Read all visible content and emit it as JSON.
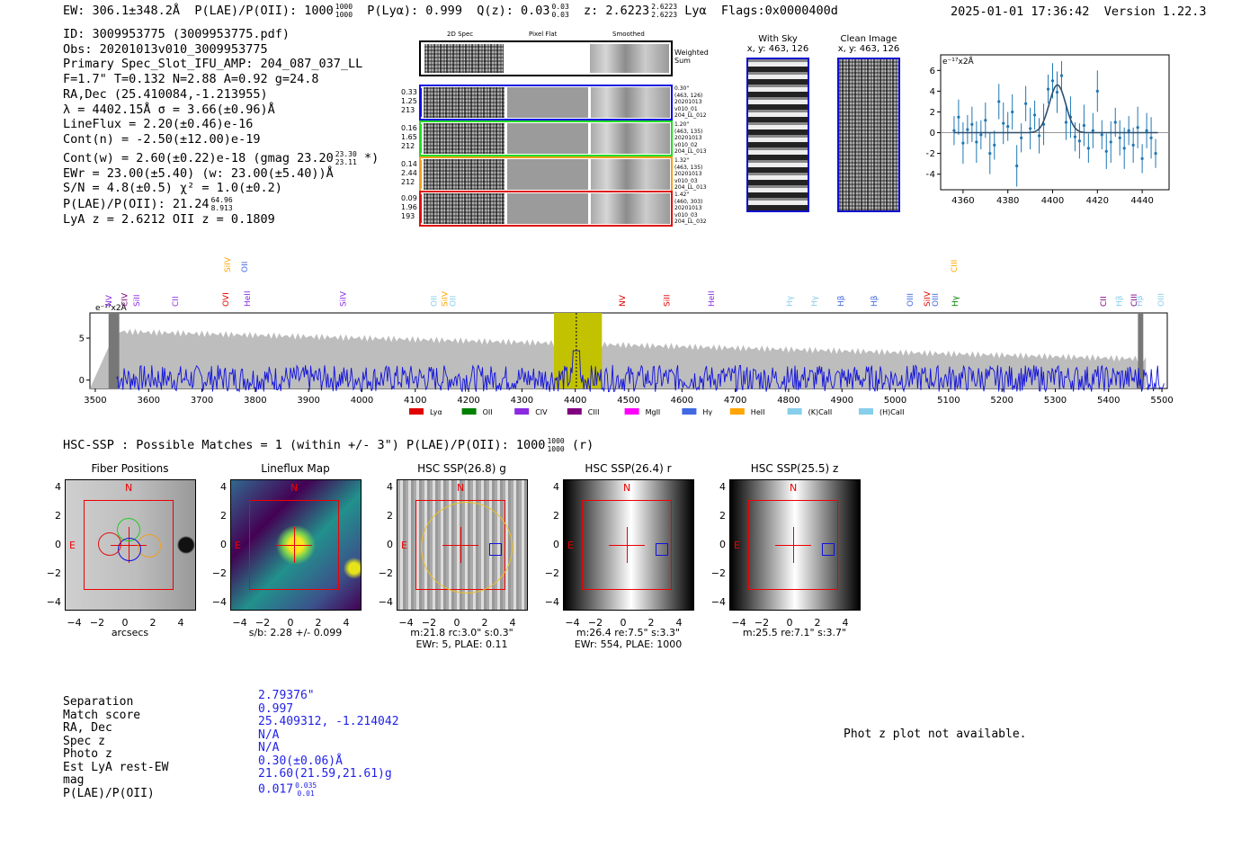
{
  "header": {
    "ew": "EW: 306.1±348.2Å",
    "plae_label": "P(LAE)/P(OII): 1000",
    "plae_hi": "1000",
    "plae_lo": "1000",
    "plya": "P(Lyα): 0.999",
    "qz_label": "Q(z): 0.03",
    "qz_hi": "0.03",
    "qz_lo": "0.03",
    "z_label": "z: 2.6223",
    "z_hi": "2.6223",
    "z_lo": "2.6223",
    "z_line": "Lyα",
    "flags": "Flags:0x0000400d",
    "timestamp": "2025-01-01 17:36:42",
    "version": "Version 1.22.3"
  },
  "info": {
    "id": "ID: 3009953775 (3009953775.pdf)",
    "obs": "Obs: 20201013v010_3009953775",
    "primary": "Primary Spec_Slot_IFU_AMP: 204_087_037_LL",
    "params": "F=1.7\"  T=0.132  N=2.88  A=0.92  g=24.8",
    "radec": "RA,Dec (25.410084,-1.213955)",
    "lambda": "λ = 4402.15Å  σ = 3.66(±0.96)Å",
    "lineflux": "LineFlux = 2.20(±0.46)e-16",
    "contn": "Cont(n) = -2.50(±12.00)e-19",
    "contw": "Cont(w) = 2.60(±0.22)e-18 (gmag 23.20",
    "contw_hi": "23.30",
    "contw_lo": "23.11",
    "contw_end": "*)",
    "ewr": "EWr = 23.00(±5.40) (w: 23.00(±5.40))Å",
    "sn": "S/N = 4.8(±0.5)  χ² = 1.0(±0.2)",
    "plae": "P(LAE)/P(OII): 21.24",
    "plae_hi": "64.96",
    "plae_lo": "8.913",
    "lyaz": "LyA z = 2.6212  OII z = 0.1809"
  },
  "cutouts": {
    "col_titles": [
      "2D Spec",
      "Pixel Flat",
      "Smoothed"
    ],
    "weighted_sum": "Weighted\nSum",
    "rows": [
      {
        "color": "#1010e0",
        "left": [
          "0.33",
          "1.25",
          "213"
        ],
        "right": [
          "0.30\"",
          "(463, 126)",
          "20201013",
          "v010_01",
          "204_LL_012"
        ]
      },
      {
        "color": "#22dd22",
        "left": [
          "0.16",
          "1.65",
          "212"
        ],
        "right": [
          "1.20\"",
          "(463, 135)",
          "20201013",
          "v010_02",
          "204_LL_013"
        ]
      },
      {
        "color": "#f0a020",
        "left": [
          "0.14",
          "2.44",
          "212"
        ],
        "right": [
          "1.32\"",
          "(463, 135)",
          "20201013",
          "v010_03",
          "204_LL_013"
        ]
      },
      {
        "color": "#e01010",
        "left": [
          "0.09",
          "1.96",
          "193"
        ],
        "right": [
          "1.42\"",
          "(460, 303)",
          "20201013",
          "v010_03",
          "204_LL_032"
        ]
      }
    ],
    "with_sky_title": "With Sky",
    "with_sky_xy": "x, y: 463, 126",
    "clean_title": "Clean Image",
    "clean_xy": "x, y: 463, 126"
  },
  "zoom_plot": {
    "unit": "e⁻¹⁷x2Å",
    "x_ticks": [
      "4360",
      "4380",
      "4400",
      "4420",
      "4440"
    ],
    "y_ticks": [
      "6",
      "4",
      "2",
      "0",
      "−2",
      "−4"
    ]
  },
  "chart_data": [
    {
      "type": "scatter",
      "title": "",
      "xlabel": "",
      "ylabel": "e⁻¹⁷x2Å",
      "xlim": [
        4350,
        4452
      ],
      "ylim": [
        -5.5,
        7.5
      ],
      "series": [
        {
          "name": "",
          "x": [
            4356,
            4358,
            4360,
            4362,
            4364,
            4366,
            4368,
            4370,
            4372,
            4374,
            4376,
            4378,
            4380,
            4382,
            4384,
            4386,
            4388,
            4390,
            4392,
            4394,
            4396,
            4398,
            4400,
            4402,
            4404,
            4406,
            4408,
            4410,
            4412,
            4414,
            4416,
            4418,
            4420,
            4422,
            4424,
            4426,
            4428,
            4430,
            4432,
            4434,
            4436,
            4438,
            4440,
            4442,
            4444,
            4446
          ],
          "y": [
            0.2,
            1.5,
            -1.0,
            0.3,
            0.8,
            -0.9,
            -0.2,
            1.2,
            -2.0,
            -1.2,
            3.0,
            0.9,
            0.6,
            2.0,
            -3.2,
            -0.5,
            2.8,
            0.4,
            1.7,
            -0.3,
            0.8,
            4.2,
            5.0,
            3.9,
            5.5,
            1.0,
            1.5,
            -0.4,
            -0.8,
            0.7,
            -1.5,
            0.2,
            4.0,
            -0.2,
            -1.8,
            -0.9,
            1.0,
            -0.5,
            -1.5,
            0.2,
            -1.2,
            0.5,
            -2.5,
            0.2,
            -0.5,
            -2.0
          ]
        }
      ]
    },
    {
      "type": "line",
      "title": "",
      "xlabel": "",
      "ylabel": "e⁻¹⁷x2Å",
      "xlim": [
        3490,
        5510
      ],
      "ylim": [
        -1,
        8
      ],
      "x_ticks": [
        "3500",
        "3600",
        "3700",
        "3800",
        "3900",
        "4000",
        "4100",
        "4200",
        "4300",
        "4400",
        "4500",
        "4600",
        "4700",
        "4800",
        "4900",
        "5000",
        "5100",
        "5200",
        "5300",
        "5400",
        "5500"
      ],
      "y_ticks": [
        "5",
        "0"
      ],
      "highlight": [
        4360,
        4450
      ],
      "legend": [
        {
          "name": "Lyα",
          "color": "#e00000"
        },
        {
          "name": "OII",
          "color": "#008000"
        },
        {
          "name": "CIV",
          "color": "#8a2be2"
        },
        {
          "name": "CIII",
          "color": "#800080"
        },
        {
          "name": "MgII",
          "color": "#ff00ff"
        },
        {
          "name": "Hγ",
          "color": "#4169e1"
        },
        {
          "name": "HeII",
          "color": "#ffa500"
        },
        {
          "name": "(K)CaII",
          "color": "#87ceeb"
        },
        {
          "name": "(H)CaII",
          "color": "#87ceeb"
        }
      ],
      "line_labels": [
        {
          "name": "NV",
          "x": 3525,
          "color": "#8a2be2"
        },
        {
          "name": "CIV",
          "x": 3555,
          "color": "#800080"
        },
        {
          "name": "SiII",
          "x": 3578,
          "color": "#8a2be2"
        },
        {
          "name": "CII",
          "x": 3650,
          "color": "#8a2be2"
        },
        {
          "name": "SiIV",
          "x": 3748,
          "color": "#ffa500",
          "high": true
        },
        {
          "name": "OII",
          "x": 3780,
          "color": "#4169e1",
          "high": true
        },
        {
          "name": "OVI",
          "x": 3745,
          "color": "#e00000"
        },
        {
          "name": "HeII",
          "x": 3785,
          "color": "#8a2be2"
        },
        {
          "name": "SiIV",
          "x": 3965,
          "color": "#8a2be2"
        },
        {
          "name": "OII",
          "x": 4135,
          "color": "#87ceeb"
        },
        {
          "name": "SiIV",
          "x": 4155,
          "color": "#ffa500"
        },
        {
          "name": "OII",
          "x": 4170,
          "color": "#87ceeb"
        },
        {
          "name": "NV",
          "x": 4488,
          "color": "#e00000"
        },
        {
          "name": "SiII",
          "x": 4572,
          "color": "#e00000"
        },
        {
          "name": "HeII",
          "x": 4655,
          "color": "#8a2be2"
        },
        {
          "name": "Hγ",
          "x": 4802,
          "color": "#87ceeb"
        },
        {
          "name": "Hγ",
          "x": 4848,
          "color": "#87ceeb"
        },
        {
          "name": "Hβ",
          "x": 4898,
          "color": "#4169e1"
        },
        {
          "name": "Hβ",
          "x": 4960,
          "color": "#4169e1"
        },
        {
          "name": "OIII",
          "x": 5028,
          "color": "#4169e1"
        },
        {
          "name": "SiIV",
          "x": 5060,
          "color": "#e00000"
        },
        {
          "name": "OIII",
          "x": 5075,
          "color": "#4169e1"
        },
        {
          "name": "CIII",
          "x": 5110,
          "color": "#ffa500",
          "high": true
        },
        {
          "name": "Hγ",
          "x": 5112,
          "color": "#008000"
        },
        {
          "name": "CII",
          "x": 5390,
          "color": "#800080"
        },
        {
          "name": "Hβ",
          "x": 5420,
          "color": "#87ceeb"
        },
        {
          "name": "CIII",
          "x": 5448,
          "color": "#800080"
        },
        {
          "name": "Hβ",
          "x": 5458,
          "color": "#87ceeb"
        },
        {
          "name": "OIII",
          "x": 5498,
          "color": "#87ceeb"
        }
      ]
    }
  ],
  "hsc": {
    "summary": "HSC-SSP : Possible Matches = 1 (within +/- 3\")  P(LAE)/P(OII): 1000",
    "summary_hi": "1000",
    "summary_lo": "1000",
    "summary_end": "(r)",
    "panels": [
      {
        "title": "Fiber Positions",
        "cap1": "arcsecs",
        "cap2": ""
      },
      {
        "title": "Lineflux Map",
        "cap1": "s/b: 2.28 +/- 0.099",
        "cap2": ""
      },
      {
        "title": "HSC SSP(26.8) g",
        "cap1": "m:21.8 rc:3.0\"  s:0.3\"",
        "cap2": "EWr: 5, PLAE: 0.11"
      },
      {
        "title": "HSC SSP(26.4) r",
        "cap1": "m:26.4  re:7.5\"  s:3.3\"",
        "cap2": "EWr: 554, PLAE: 1000"
      },
      {
        "title": "HSC SSP(25.5) z",
        "cap1": "m:25.5  re:7.1\"  s:3.7\"",
        "cap2": ""
      }
    ],
    "axis_ticks": [
      "4",
      "2",
      "0",
      "−2",
      "−4"
    ],
    "x_ticks": [
      "−4",
      "−2",
      "0",
      "2",
      "4"
    ],
    "north": "N",
    "east": "E"
  },
  "match_table": {
    "keys": [
      "Separation",
      "Match score",
      "RA, Dec",
      "Spec z",
      "Photo z",
      "Est LyA rest-EW",
      "mag",
      "P(LAE)/P(OII)"
    ],
    "values": [
      "2.79376\"",
      "0.997",
      "25.409312, -1.214042",
      "N/A",
      "N/A",
      "0.30(±0.06)Å",
      "21.60(21.59,21.61)g",
      "0.017"
    ],
    "plae_hi": "0.035",
    "plae_lo": "0.01"
  },
  "photz_note": "Phot z plot not available."
}
